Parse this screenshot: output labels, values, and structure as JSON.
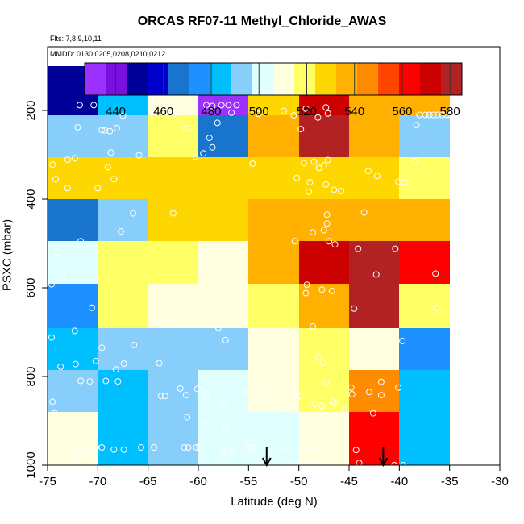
{
  "header": {
    "title": "ORCAS RF07-11 Methyl_Chloride_AWAS",
    "flights": "Flts: 7,8,9,10,11",
    "dates": "MMDD: 0130,0205,0208,0210,0212"
  },
  "colors": {
    "background": "#ffffff",
    "marker": "#ffffff",
    "palette": [
      "#9B30FF",
      "#7A10E0",
      "#000099",
      "#0000CD",
      "#1874CD",
      "#1E90FF",
      "#00BFFF",
      "#87CEFA",
      "#E0FFFF",
      "#FFFFE0",
      "#FFFF66",
      "#FFD700",
      "#FFB000",
      "#FF8C00",
      "#FF4500",
      "#FF0000",
      "#CD0000",
      "#B22222"
    ]
  },
  "chart_data": {
    "type": "heatmap",
    "title": "ORCAS RF07-11 Methyl_Chloride_AWAS",
    "xlabel": "Latitude (deg N)",
    "ylabel": "PSXC (mbar)",
    "xlim": [
      -75,
      -30
    ],
    "ylim": [
      1000,
      100
    ],
    "x_ticks": [
      -75,
      -70,
      -65,
      -60,
      -55,
      -50,
      -45,
      -40,
      -35,
      -30
    ],
    "y_ticks": [
      200,
      400,
      600,
      800,
      1000
    ],
    "colorbar": {
      "min": 427,
      "max": 585,
      "ticks": [
        440,
        460,
        480,
        500,
        520,
        540,
        560,
        580
      ]
    },
    "x_bin_edges": [
      -75,
      -70,
      -65,
      -60,
      -55,
      -50,
      -45,
      -40,
      -35
    ],
    "y_bin_edges": [
      100,
      210,
      305,
      400,
      495,
      590,
      690,
      785,
      880,
      975,
      1000
    ],
    "cells": [
      [
        446,
        487,
        506,
        432,
        527,
        569,
        535,
        538
      ],
      [
        491,
        495,
        519,
        463,
        534,
        577,
        536,
        494
      ],
      [
        532,
        526,
        526,
        526,
        526,
        528,
        527,
        519
      ],
      [
        470,
        494,
        526,
        530,
        537,
        541,
        534,
        537
      ],
      [
        504,
        515,
        515,
        512,
        540,
        568,
        580,
        563
      ],
      [
        471,
        519,
        511,
        508,
        522,
        540,
        578,
        515
      ],
      [
        487,
        489,
        496,
        496,
        509,
        522,
        506,
        476
      ],
      [
        496,
        486,
        496,
        500,
        510,
        518,
        547,
        484
      ],
      [
        510,
        486,
        491,
        498,
        505,
        507,
        559,
        488
      ],
      [
        510,
        486,
        491,
        498,
        505,
        507,
        559,
        488
      ]
    ],
    "points": [
      [
        -71.8,
        188
      ],
      [
        -70.4,
        188
      ],
      [
        -68.1,
        240
      ],
      [
        -67.5,
        212
      ],
      [
        -64.5,
        183
      ],
      [
        -62.9,
        192
      ],
      [
        -62.4,
        208
      ],
      [
        -59.2,
        188
      ],
      [
        -58.6,
        190
      ],
      [
        -58.1,
        228
      ],
      [
        -57.7,
        188
      ],
      [
        -57.0,
        188
      ],
      [
        -56.7,
        205
      ],
      [
        -56.2,
        188
      ],
      [
        -54.0,
        208
      ],
      [
        -51.5,
        201
      ],
      [
        -50.5,
        211
      ],
      [
        -49.3,
        196
      ],
      [
        -47.3,
        193
      ],
      [
        -47.1,
        207
      ],
      [
        -48.1,
        216
      ],
      [
        -38.0,
        210
      ],
      [
        -37.4,
        210
      ],
      [
        -37.0,
        210
      ],
      [
        -36.6,
        210
      ],
      [
        -36.2,
        210
      ],
      [
        -35.7,
        210
      ],
      [
        -35.3,
        210
      ],
      [
        -35.0,
        210
      ],
      [
        -34.6,
        210
      ],
      [
        -34.2,
        210
      ],
      [
        -72.0,
        238
      ],
      [
        -69.6,
        244
      ],
      [
        -69.3,
        245
      ],
      [
        -68.8,
        247
      ],
      [
        -61.2,
        240
      ],
      [
        -58.9,
        262
      ],
      [
        -58.6,
        283
      ],
      [
        -49.8,
        242
      ],
      [
        -38.3,
        233
      ],
      [
        -74.5,
        322
      ],
      [
        -73.0,
        311
      ],
      [
        -72.3,
        308
      ],
      [
        -69.0,
        328
      ],
      [
        -68.7,
        295
      ],
      [
        -65.9,
        301
      ],
      [
        -60.3,
        304
      ],
      [
        -59.5,
        297
      ],
      [
        -54.6,
        320
      ],
      [
        -49.5,
        319
      ],
      [
        -48.5,
        316
      ],
      [
        -47.5,
        324
      ],
      [
        -47.1,
        312
      ],
      [
        -48.0,
        330
      ],
      [
        -38.5,
        314
      ],
      [
        -74.2,
        355
      ],
      [
        -73.0,
        375
      ],
      [
        -70.0,
        375
      ],
      [
        -68.4,
        355
      ],
      [
        -50.2,
        352
      ],
      [
        -48.9,
        362
      ],
      [
        -47.3,
        367
      ],
      [
        -46.5,
        379
      ],
      [
        -45.8,
        382
      ],
      [
        -43.1,
        337
      ],
      [
        -42.2,
        348
      ],
      [
        -40.1,
        361
      ],
      [
        -39.5,
        362
      ],
      [
        -49.0,
        383
      ],
      [
        -66.5,
        432
      ],
      [
        -62.5,
        432
      ],
      [
        -67.7,
        473
      ],
      [
        -47.2,
        435
      ],
      [
        -47.2,
        455
      ],
      [
        -47.5,
        470
      ],
      [
        -48.6,
        475
      ],
      [
        -50.4,
        495
      ],
      [
        -47.0,
        495
      ],
      [
        -46.4,
        502
      ],
      [
        -43.5,
        430
      ],
      [
        -74.0,
        520
      ],
      [
        -71.7,
        495
      ],
      [
        -44.1,
        512
      ],
      [
        -40.4,
        512
      ],
      [
        -74.6,
        592
      ],
      [
        -70.1,
        580
      ],
      [
        -73.5,
        577
      ],
      [
        -42.3,
        570
      ],
      [
        -36.4,
        568
      ],
      [
        -49.2,
        593
      ],
      [
        -46.7,
        607
      ],
      [
        -47.7,
        604
      ],
      [
        -49.3,
        612
      ],
      [
        -44.5,
        647
      ],
      [
        -36.3,
        646
      ],
      [
        -70.6,
        645
      ],
      [
        -74.6,
        712
      ],
      [
        -72.3,
        697
      ],
      [
        -62.6,
        670
      ],
      [
        -58.0,
        690
      ],
      [
        -57.3,
        718
      ],
      [
        -48.6,
        687
      ],
      [
        -42.5,
        706
      ],
      [
        -39.7,
        720
      ],
      [
        -69.6,
        735
      ],
      [
        -72.2,
        772
      ],
      [
        -66.4,
        729
      ],
      [
        -63.9,
        770
      ],
      [
        -73.7,
        778
      ],
      [
        -70.2,
        765
      ],
      [
        -68.2,
        784
      ],
      [
        -67.4,
        771
      ],
      [
        -53.3,
        788
      ],
      [
        -48.0,
        757
      ],
      [
        -47.6,
        769
      ],
      [
        -47.3,
        815
      ],
      [
        -44.8,
        825
      ],
      [
        -74.5,
        857
      ],
      [
        -71.7,
        810
      ],
      [
        -70.8,
        811
      ],
      [
        -69.2,
        810
      ],
      [
        -68.0,
        811
      ],
      [
        -61.8,
        827
      ],
      [
        -63.7,
        844
      ],
      [
        -63.3,
        844
      ],
      [
        -61.2,
        842
      ],
      [
        -60.1,
        828
      ],
      [
        -59.2,
        839
      ],
      [
        -57.5,
        860
      ],
      [
        -55.3,
        836
      ],
      [
        -53.6,
        828
      ],
      [
        -51.5,
        871
      ],
      [
        -49.8,
        843
      ],
      [
        -48.4,
        862
      ],
      [
        -47.7,
        866
      ],
      [
        -46.6,
        857
      ],
      [
        -46.4,
        860
      ],
      [
        -45.5,
        874
      ],
      [
        -44.7,
        840
      ],
      [
        -43.0,
        835
      ],
      [
        -41.8,
        812
      ],
      [
        -40.1,
        825
      ],
      [
        -42.6,
        883
      ],
      [
        -41.8,
        842
      ],
      [
        -74.3,
        883
      ],
      [
        -61.1,
        892
      ],
      [
        -59.4,
        906
      ],
      [
        -57.3,
        920
      ],
      [
        -74.1,
        937
      ],
      [
        -65.7,
        960
      ],
      [
        -64.4,
        960
      ],
      [
        -61.4,
        960
      ],
      [
        -61.0,
        960
      ],
      [
        -60.2,
        960
      ],
      [
        -59.9,
        960
      ],
      [
        -57.4,
        958
      ],
      [
        -57.5,
        978
      ],
      [
        -56.6,
        970
      ],
      [
        -55.1,
        960
      ],
      [
        -54.6,
        960
      ],
      [
        -52.9,
        960
      ],
      [
        -51.7,
        960
      ],
      [
        -49.0,
        960
      ],
      [
        -44.3,
        966
      ],
      [
        -72.2,
        960
      ],
      [
        -71.6,
        960
      ],
      [
        -70.2,
        960
      ],
      [
        -69.6,
        960
      ],
      [
        -68.4,
        965
      ],
      [
        -67.4,
        965
      ],
      [
        -70.9,
        978
      ],
      [
        -72.4,
        978
      ],
      [
        -71.3,
        978
      ],
      [
        -50.1,
        1000
      ],
      [
        -49.0,
        1000
      ],
      [
        -48.3,
        1000
      ],
      [
        -47.5,
        1000
      ],
      [
        -44.0,
        995
      ],
      [
        -40.5,
        1000
      ],
      [
        -39.6,
        1000
      ],
      [
        -51.9,
        1000
      ],
      [
        -50.9,
        1000
      ]
    ],
    "arrows": [
      -53.2,
      -41.6
    ]
  }
}
